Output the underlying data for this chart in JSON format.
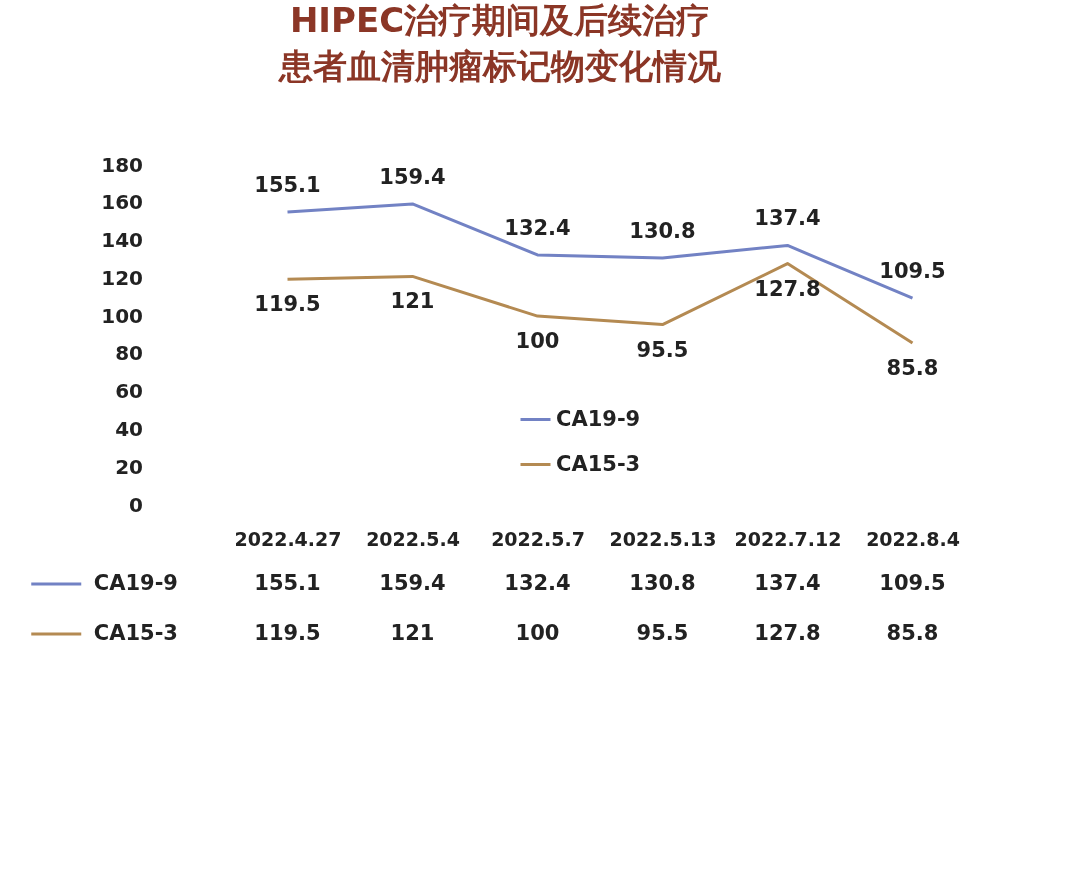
{
  "chart_data": {
    "type": "line",
    "title": "HIPEC治疗期间及后续治疗患者血清肿瘤标记物变化情况",
    "categories": [
      "2022.4.27",
      "2022.5.4",
      "2022.5.7",
      "2022.5.13",
      "2022.7.12",
      "2022.8.4"
    ],
    "series": [
      {
        "name": "CA19-9",
        "color": "#7282c4",
        "values": [
          155.1,
          159.4,
          132.4,
          130.8,
          137.4,
          109.5
        ]
      },
      {
        "name": "CA15-3",
        "color": "#b48a52",
        "values": [
          119.5,
          121,
          100,
          95.5,
          127.8,
          85.8
        ]
      }
    ],
    "annotations": [
      "155.1",
      "159.4",
      "132.4",
      "130.8",
      "137.4",
      "109.5",
      "119.5",
      "121",
      "100",
      "95.5",
      "127.8",
      "85.8"
    ],
    "ylim": [
      0,
      180
    ],
    "yticks": [
      0,
      20,
      40,
      60,
      80,
      100,
      120,
      140,
      160,
      180
    ],
    "grid": false,
    "legend": "bottom",
    "data_labels": true,
    "marker": "none",
    "line_style": "solid"
  }
}
